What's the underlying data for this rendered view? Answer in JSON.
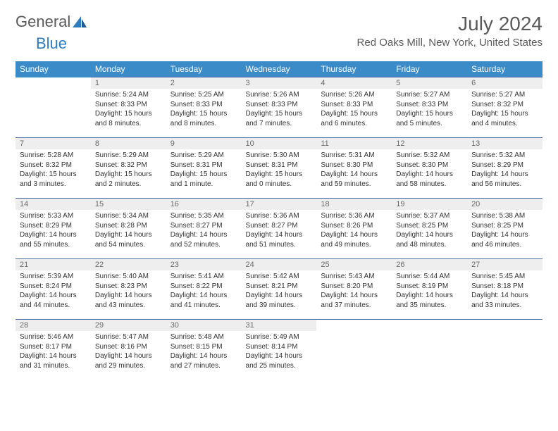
{
  "logo": {
    "word1": "General",
    "word2": "Blue",
    "icon_color": "#2e7cc0"
  },
  "title": "July 2024",
  "location": "Red Oaks Mill, New York, United States",
  "weekdays": [
    "Sunday",
    "Monday",
    "Tuesday",
    "Wednesday",
    "Thursday",
    "Friday",
    "Saturday"
  ],
  "colors": {
    "header_bg": "#3b8bc9",
    "header_text": "#ffffff",
    "daynum_bg": "#eeeeee",
    "daynum_text": "#6a6a6a",
    "body_text": "#333333",
    "cell_border": "#4a6fa5",
    "title_text": "#5a5a5a",
    "page_bg": "#ffffff"
  },
  "start_day_index": 1,
  "days": [
    {
      "n": "1",
      "sunrise": "5:24 AM",
      "sunset": "8:33 PM",
      "daylight": "15 hours and 8 minutes."
    },
    {
      "n": "2",
      "sunrise": "5:25 AM",
      "sunset": "8:33 PM",
      "daylight": "15 hours and 8 minutes."
    },
    {
      "n": "3",
      "sunrise": "5:26 AM",
      "sunset": "8:33 PM",
      "daylight": "15 hours and 7 minutes."
    },
    {
      "n": "4",
      "sunrise": "5:26 AM",
      "sunset": "8:33 PM",
      "daylight": "15 hours and 6 minutes."
    },
    {
      "n": "5",
      "sunrise": "5:27 AM",
      "sunset": "8:33 PM",
      "daylight": "15 hours and 5 minutes."
    },
    {
      "n": "6",
      "sunrise": "5:27 AM",
      "sunset": "8:32 PM",
      "daylight": "15 hours and 4 minutes."
    },
    {
      "n": "7",
      "sunrise": "5:28 AM",
      "sunset": "8:32 PM",
      "daylight": "15 hours and 3 minutes."
    },
    {
      "n": "8",
      "sunrise": "5:29 AM",
      "sunset": "8:32 PM",
      "daylight": "15 hours and 2 minutes."
    },
    {
      "n": "9",
      "sunrise": "5:29 AM",
      "sunset": "8:31 PM",
      "daylight": "15 hours and 1 minute."
    },
    {
      "n": "10",
      "sunrise": "5:30 AM",
      "sunset": "8:31 PM",
      "daylight": "15 hours and 0 minutes."
    },
    {
      "n": "11",
      "sunrise": "5:31 AM",
      "sunset": "8:30 PM",
      "daylight": "14 hours and 59 minutes."
    },
    {
      "n": "12",
      "sunrise": "5:32 AM",
      "sunset": "8:30 PM",
      "daylight": "14 hours and 58 minutes."
    },
    {
      "n": "13",
      "sunrise": "5:32 AM",
      "sunset": "8:29 PM",
      "daylight": "14 hours and 56 minutes."
    },
    {
      "n": "14",
      "sunrise": "5:33 AM",
      "sunset": "8:29 PM",
      "daylight": "14 hours and 55 minutes."
    },
    {
      "n": "15",
      "sunrise": "5:34 AM",
      "sunset": "8:28 PM",
      "daylight": "14 hours and 54 minutes."
    },
    {
      "n": "16",
      "sunrise": "5:35 AM",
      "sunset": "8:27 PM",
      "daylight": "14 hours and 52 minutes."
    },
    {
      "n": "17",
      "sunrise": "5:36 AM",
      "sunset": "8:27 PM",
      "daylight": "14 hours and 51 minutes."
    },
    {
      "n": "18",
      "sunrise": "5:36 AM",
      "sunset": "8:26 PM",
      "daylight": "14 hours and 49 minutes."
    },
    {
      "n": "19",
      "sunrise": "5:37 AM",
      "sunset": "8:25 PM",
      "daylight": "14 hours and 48 minutes."
    },
    {
      "n": "20",
      "sunrise": "5:38 AM",
      "sunset": "8:25 PM",
      "daylight": "14 hours and 46 minutes."
    },
    {
      "n": "21",
      "sunrise": "5:39 AM",
      "sunset": "8:24 PM",
      "daylight": "14 hours and 44 minutes."
    },
    {
      "n": "22",
      "sunrise": "5:40 AM",
      "sunset": "8:23 PM",
      "daylight": "14 hours and 43 minutes."
    },
    {
      "n": "23",
      "sunrise": "5:41 AM",
      "sunset": "8:22 PM",
      "daylight": "14 hours and 41 minutes."
    },
    {
      "n": "24",
      "sunrise": "5:42 AM",
      "sunset": "8:21 PM",
      "daylight": "14 hours and 39 minutes."
    },
    {
      "n": "25",
      "sunrise": "5:43 AM",
      "sunset": "8:20 PM",
      "daylight": "14 hours and 37 minutes."
    },
    {
      "n": "26",
      "sunrise": "5:44 AM",
      "sunset": "8:19 PM",
      "daylight": "14 hours and 35 minutes."
    },
    {
      "n": "27",
      "sunrise": "5:45 AM",
      "sunset": "8:18 PM",
      "daylight": "14 hours and 33 minutes."
    },
    {
      "n": "28",
      "sunrise": "5:46 AM",
      "sunset": "8:17 PM",
      "daylight": "14 hours and 31 minutes."
    },
    {
      "n": "29",
      "sunrise": "5:47 AM",
      "sunset": "8:16 PM",
      "daylight": "14 hours and 29 minutes."
    },
    {
      "n": "30",
      "sunrise": "5:48 AM",
      "sunset": "8:15 PM",
      "daylight": "14 hours and 27 minutes."
    },
    {
      "n": "31",
      "sunrise": "5:49 AM",
      "sunset": "8:14 PM",
      "daylight": "14 hours and 25 minutes."
    }
  ],
  "labels": {
    "sunrise": "Sunrise:",
    "sunset": "Sunset:",
    "daylight": "Daylight:"
  }
}
